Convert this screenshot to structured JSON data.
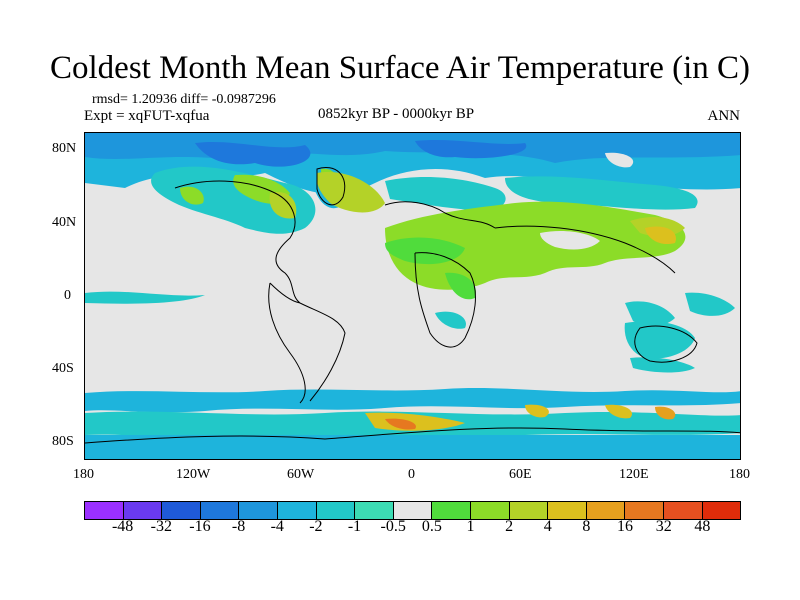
{
  "title": "Coldest Month Mean Surface Air Temperature (in C)",
  "stats": "rmsd= 1.20936 diff= -0.0987296",
  "experiment": "Expt = xqFUT-xqfua",
  "period": "0852kyr BP - 0000kyr BP",
  "season": "ANN",
  "lat_ticks": [
    "80N",
    "40N",
    "0",
    "40S",
    "80S"
  ],
  "lon_ticks": [
    "180",
    "120W",
    "60W",
    "0",
    "60E",
    "120E",
    "180"
  ],
  "colorbar": {
    "labels": [
      "-48",
      "-32",
      "-16",
      "-8",
      "-4",
      "-2",
      "-1",
      "-0.5",
      "0.5",
      "1",
      "2",
      "4",
      "8",
      "16",
      "32",
      "48"
    ],
    "colors": [
      "#9b30ff",
      "#6a3af0",
      "#1f5ad8",
      "#1e78dc",
      "#1e96dc",
      "#1eb4dc",
      "#22c8c8",
      "#3cdcb4",
      "#e6e6e6",
      "#50dc3c",
      "#8cdc28",
      "#b4d228",
      "#dcc01e",
      "#e6a01e",
      "#e67820",
      "#e65020",
      "#e02c0a"
    ]
  }
}
